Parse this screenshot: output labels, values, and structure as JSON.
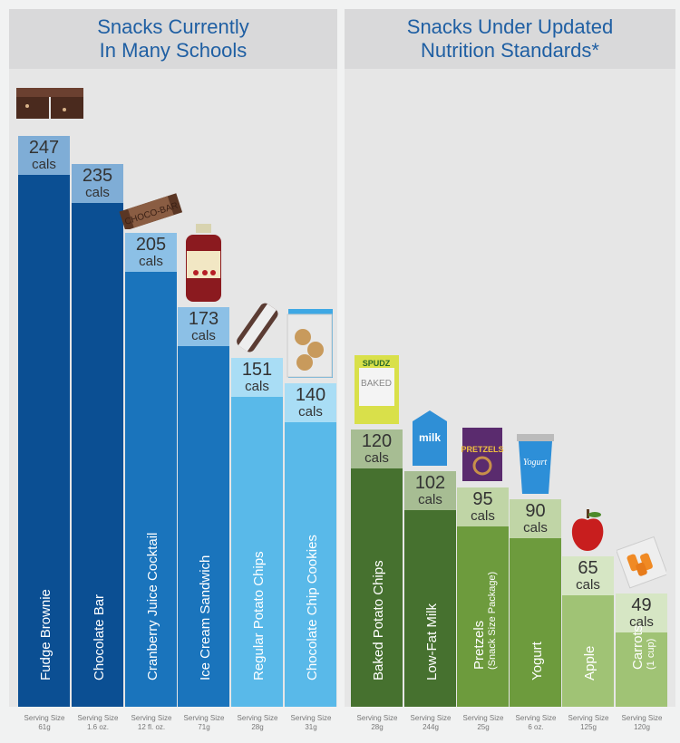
{
  "chart_data": {
    "type": "bar",
    "unit_label": "cals",
    "serving_prefix": "Serving Size",
    "groups": [
      {
        "title_lines": [
          "Snacks Currently",
          "In Many Schools"
        ],
        "categories": [
          "Fudge Brownie",
          "Chocolate Bar",
          "Cranberry Juice Cocktail",
          "Ice Cream Sandwich",
          "Regular Potato Chips",
          "Chocolate Chip Cookies"
        ],
        "sublabels": [
          "",
          "",
          "",
          "",
          "",
          ""
        ],
        "values": [
          247,
          235,
          205,
          173,
          151,
          140
        ],
        "serving_sizes": [
          "61g",
          "1.6 oz.",
          "12 fl. oz.",
          "71g",
          "28g",
          "31g"
        ],
        "bar_colors": [
          "#0b4f93",
          "#0b4f93",
          "#1a74bc",
          "#1a74bc",
          "#59b9e9",
          "#59b9e9"
        ],
        "label_colors": [
          "#7fadd6",
          "#7fadd6",
          "#8cc0e6",
          "#8cc0e6",
          "#a9ddf5",
          "#a9ddf5"
        ],
        "icons": [
          "brownie-icon",
          "chocolate-bar-icon",
          "juice-bottle-icon",
          "ice-cream-sandwich-icon",
          "potato-chips-bag-icon",
          "cookies-bag-icon"
        ]
      },
      {
        "title_lines": [
          "Snacks Under Updated",
          "Nutrition Standards*"
        ],
        "categories": [
          "Baked Potato Chips",
          "Low-Fat Milk",
          "Pretzels",
          "Yogurt",
          "Apple",
          "Carrots"
        ],
        "sublabels": [
          "",
          "",
          "(Snack Size Package)",
          "",
          "",
          "(1 cup)"
        ],
        "values": [
          120,
          102,
          95,
          90,
          65,
          49
        ],
        "serving_sizes": [
          "28g",
          "244g",
          "25g",
          "6 oz.",
          "125g",
          "120g"
        ],
        "bar_colors": [
          "#46712f",
          "#46712f",
          "#6d9b3d",
          "#6d9b3d",
          "#a0c375",
          "#a0c375"
        ],
        "label_colors": [
          "#a7bd93",
          "#a7bd93",
          "#c0d5a6",
          "#c0d5a6",
          "#d6e6c4",
          "#d6e6c4"
        ],
        "icons": [
          "baked-chips-bag-icon",
          "milk-carton-icon",
          "pretzels-bag-icon",
          "yogurt-cup-icon",
          "apple-icon",
          "carrots-bag-icon"
        ]
      }
    ]
  }
}
